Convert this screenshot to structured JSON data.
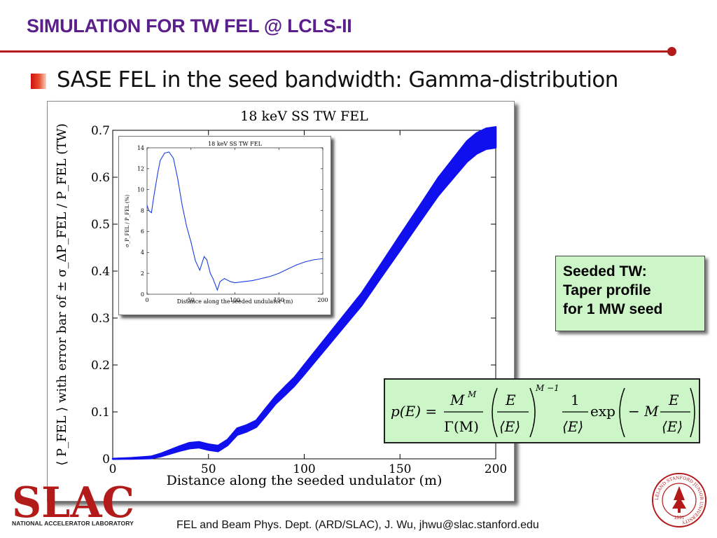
{
  "slide": {
    "title": "SIMULATION FOR TW FEL @ LCLS-II",
    "bullet": "SASE FEL in the seed bandwidth: Gamma-distribution",
    "footer": "FEL and Beam Phys. Dept. (ARD/SLAC), J. Wu, jhwu@slac.stanford.edu",
    "accent_color": "#b31b1b",
    "title_color": "#5a1f8a"
  },
  "note_box": {
    "lines": [
      "Seeded TW:",
      "Taper profile",
      "for 1 MW seed"
    ],
    "background": "#ccf5c8"
  },
  "formula": {
    "lhs": "p(E) =",
    "M": "M",
    "M_sup": "M",
    "Gamma_M": "Γ(M)",
    "E": "E",
    "E_avg": "⟨E⟩",
    "exponent": "M −1",
    "one": "1",
    "exp": "exp",
    "minus_M": "− M"
  },
  "logos": {
    "slac_text": "SLAC",
    "slac_caption": "NATIONAL ACCELERATOR LABORATORY",
    "slac_color": "#b31b1b",
    "seal_text": "LELAND STANFORD JUNIOR UNIVERSITY",
    "seal_year": "1891"
  },
  "chart_data": [
    {
      "type": "area",
      "title": "18 keV SS TW FEL",
      "xlabel": "Distance along the seeded undulator (m)",
      "ylabel": "⟨ P_FEL ⟩ with error bar of ± σ_ΔP_FEL / P_FEL (TW)",
      "xlim": [
        0,
        200
      ],
      "ylim": [
        0,
        0.7
      ],
      "xticks": [
        0,
        50,
        100,
        150,
        200
      ],
      "yticks": [
        0,
        0.1,
        0.2,
        0.3,
        0.4,
        0.5,
        0.6,
        0.7
      ],
      "grid": false,
      "color": "#1010ee",
      "series": [
        {
          "x": [
            0,
            10,
            20,
            25,
            30,
            35,
            40,
            45,
            50,
            55,
            60,
            65,
            70,
            75,
            80,
            85,
            90,
            95,
            100,
            110,
            120,
            130,
            140,
            150,
            160,
            170,
            180,
            185,
            190,
            195,
            200
          ],
          "y": [
            0,
            0.001,
            0.003,
            0.008,
            0.015,
            0.022,
            0.028,
            0.03,
            0.025,
            0.022,
            0.035,
            0.058,
            0.065,
            0.075,
            0.1,
            0.125,
            0.145,
            0.165,
            0.19,
            0.24,
            0.29,
            0.34,
            0.4,
            0.46,
            0.52,
            0.58,
            0.63,
            0.655,
            0.672,
            0.682,
            0.685
          ],
          "error_half_width": [
            0,
            0.001,
            0.002,
            0.003,
            0.004,
            0.005,
            0.006,
            0.006,
            0.006,
            0.006,
            0.006,
            0.007,
            0.007,
            0.007,
            0.008,
            0.008,
            0.009,
            0.009,
            0.01,
            0.011,
            0.012,
            0.013,
            0.014,
            0.016,
            0.017,
            0.019,
            0.021,
            0.022,
            0.022,
            0.022,
            0.022
          ]
        }
      ]
    },
    {
      "type": "line",
      "title": "18 keV SS TW FEL",
      "xlabel": "Distance along the seeded undulator (m)",
      "ylabel": "σ_P_FEL / P_FEL (%)",
      "xlim": [
        0,
        200
      ],
      "ylim": [
        0,
        14
      ],
      "xticks": [
        0,
        50,
        100,
        150,
        200
      ],
      "yticks": [
        0,
        2,
        4,
        6,
        8,
        10,
        12,
        14
      ],
      "grid": false,
      "color": "#1a3ee0",
      "series": [
        {
          "x": [
            0,
            2,
            5,
            8,
            12,
            15,
            20,
            25,
            30,
            35,
            40,
            45,
            50,
            55,
            60,
            65,
            68,
            72,
            75,
            80,
            83,
            88,
            95,
            100,
            110,
            120,
            130,
            140,
            150,
            160,
            170,
            180,
            190,
            200
          ],
          "y": [
            8.5,
            8.0,
            7.8,
            9.5,
            11.5,
            12.8,
            13.5,
            13.6,
            13.0,
            11.0,
            8.5,
            6.5,
            5.0,
            3.2,
            2.3,
            3.6,
            3.3,
            2.0,
            1.5,
            0.4,
            1.2,
            1.5,
            1.2,
            1.1,
            1.2,
            1.3,
            1.5,
            1.7,
            2.0,
            2.4,
            2.8,
            3.1,
            3.3,
            3.4
          ]
        }
      ]
    }
  ]
}
